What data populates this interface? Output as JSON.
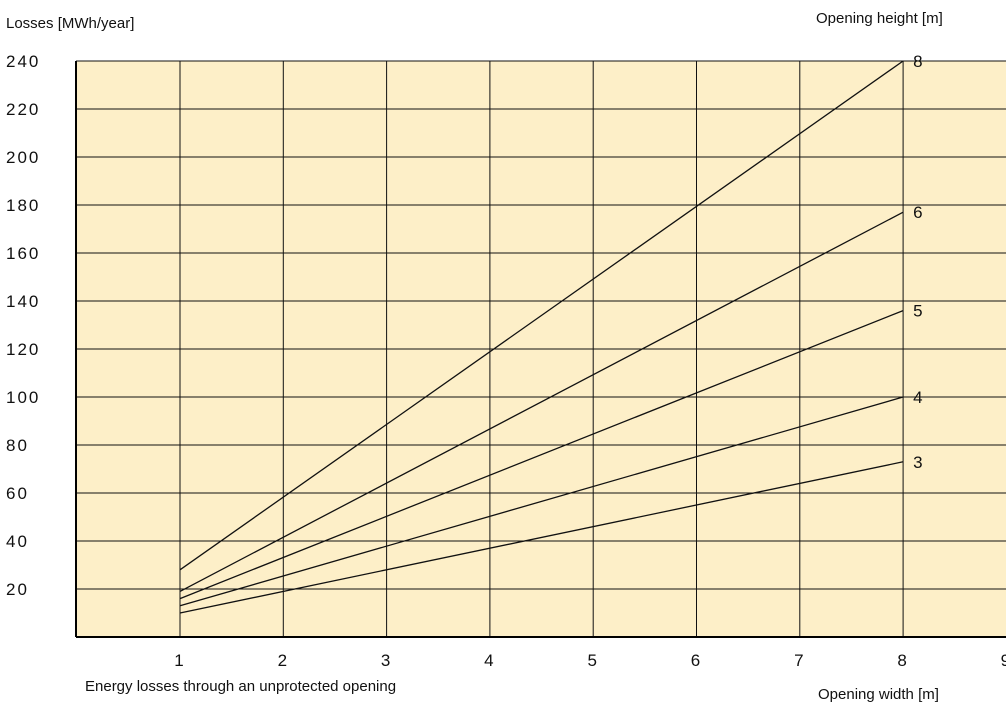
{
  "chart_data": {
    "type": "line",
    "ylabel": "Losses [MWh/year]",
    "xlabel": "Opening width [m]",
    "legend_title": "Opening height [m]",
    "caption": "Energy losses through an unprotected opening",
    "xlim": [
      0,
      9
    ],
    "ylim": [
      0,
      240
    ],
    "x_ticks": [
      1,
      2,
      3,
      4,
      5,
      6,
      7,
      8,
      9
    ],
    "y_ticks": [
      20,
      40,
      60,
      80,
      100,
      120,
      140,
      160,
      180,
      200,
      220,
      240
    ],
    "grid": true,
    "colors": {
      "plot_bg": "#fdefc8",
      "line": "#111111",
      "grid": "#111111"
    },
    "x": [
      1,
      8
    ],
    "series": [
      {
        "name": "8",
        "values": [
          28,
          240
        ]
      },
      {
        "name": "6",
        "values": [
          19,
          177
        ]
      },
      {
        "name": "5",
        "values": [
          16,
          136
        ]
      },
      {
        "name": "4",
        "values": [
          13,
          100
        ]
      },
      {
        "name": "3",
        "values": [
          10,
          73
        ]
      }
    ]
  }
}
